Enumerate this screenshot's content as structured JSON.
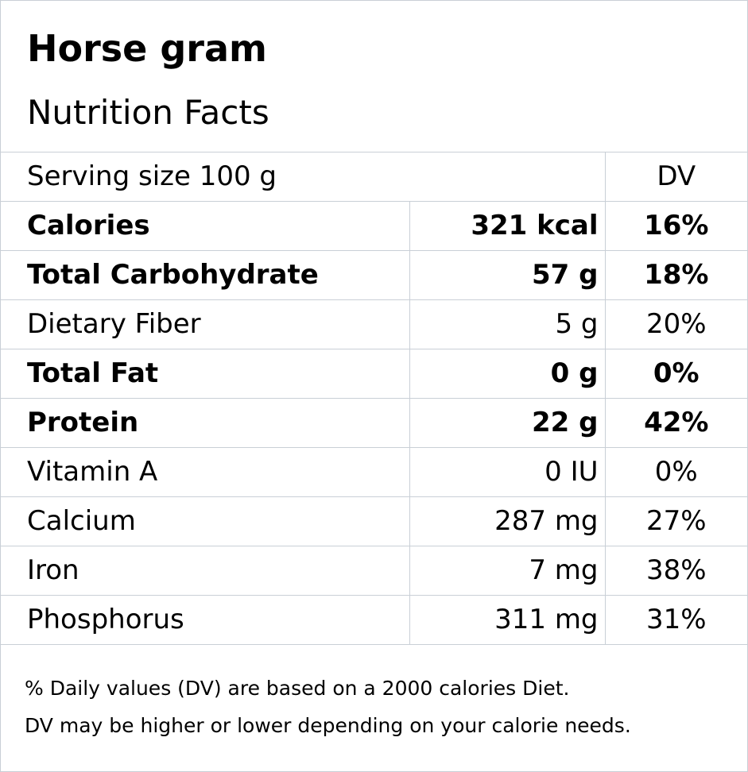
{
  "header": {
    "food_name": "Horse gram",
    "label_title": "Nutrition Facts"
  },
  "serving": {
    "label": "Serving size  100 g",
    "dv_header": "DV"
  },
  "nutrients": [
    {
      "name": "Calories",
      "amount": "321 kcal",
      "dv": "16%",
      "bold": true
    },
    {
      "name": "Total Carbohydrate",
      "amount": "57 g",
      "dv": "18%",
      "bold": true
    },
    {
      "name": "Dietary Fiber",
      "amount": "5 g",
      "dv": "20%",
      "bold": false
    },
    {
      "name": "Total Fat",
      "amount": "0 g",
      "dv": "0%",
      "bold": true
    },
    {
      "name": "Protein",
      "amount": "22 g",
      "dv": "42%",
      "bold": true
    },
    {
      "name": "Vitamin A",
      "amount": "0 IU",
      "dv": "0%",
      "bold": false
    },
    {
      "name": "Calcium",
      "amount": "287 mg",
      "dv": "27%",
      "bold": false
    },
    {
      "name": "Iron",
      "amount": "7 mg",
      "dv": "38%",
      "bold": false
    },
    {
      "name": "Phosphorus",
      "amount": "311 mg",
      "dv": "31%",
      "bold": false
    }
  ],
  "footnote": {
    "line1": "% Daily values (DV) are based on a 2000 calories Diet.",
    "line2": "DV may be higher or lower depending on your calorie needs."
  },
  "colors": {
    "border": "#c9cfd6",
    "text": "#000000",
    "background": "#ffffff"
  }
}
